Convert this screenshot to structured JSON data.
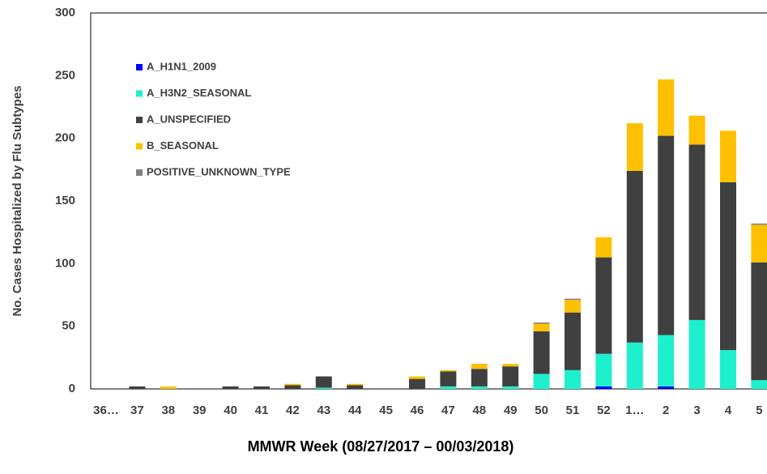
{
  "chart_data": {
    "type": "stacked_bar",
    "xlabel": "MMWR Week (08/27/2017 – 00/03/2018)",
    "ylabel": "No. Cases Hospitalized by Flu Subtypes",
    "categories": [
      "36…",
      "37",
      "38",
      "39",
      "40",
      "41",
      "42",
      "43",
      "44",
      "45",
      "46",
      "47",
      "48",
      "49",
      "50",
      "51",
      "52",
      "1…",
      "2",
      "3",
      "4",
      "5"
    ],
    "series": [
      {
        "name": "A_H1N1_2009",
        "color": "#0000ff",
        "values": [
          0,
          0,
          0,
          0,
          0,
          0,
          0,
          0,
          0,
          0,
          0,
          0,
          0,
          0,
          0,
          0,
          2,
          0,
          2,
          0,
          0,
          0
        ]
      },
      {
        "name": "A_H3N2_SEASONAL",
        "color": "#1ef0cd",
        "values": [
          0,
          0,
          0,
          0,
          0,
          0,
          0,
          1,
          0,
          0,
          0,
          2,
          2,
          2,
          12,
          15,
          26,
          37,
          41,
          55,
          31,
          7
        ]
      },
      {
        "name": "A_UNSPECIFIED",
        "color": "#404040",
        "values": [
          0,
          2,
          0,
          0,
          2,
          2,
          3,
          9,
          3,
          0,
          8,
          12,
          14,
          16,
          34,
          46,
          77,
          137,
          159,
          140,
          134,
          94
        ]
      },
      {
        "name": "B_SEASONAL",
        "color": "#ffc000",
        "values": [
          0,
          0,
          2,
          0,
          0,
          0,
          1,
          0,
          1,
          0,
          2,
          1,
          4,
          2,
          6,
          10,
          16,
          38,
          45,
          23,
          41,
          30
        ]
      },
      {
        "name": "POSITIVE_UNKNOWN_TYPE",
        "color": "#808080",
        "values": [
          0,
          0,
          0,
          0,
          0,
          0,
          0,
          0,
          0,
          0,
          0,
          0,
          0,
          0,
          1,
          1,
          0,
          0,
          0,
          0,
          0,
          1
        ]
      }
    ],
    "ylim": [
      0,
      300
    ],
    "yticks": [
      0,
      50,
      100,
      150,
      200,
      250,
      300
    ],
    "legend": "upper left",
    "grid": false
  }
}
